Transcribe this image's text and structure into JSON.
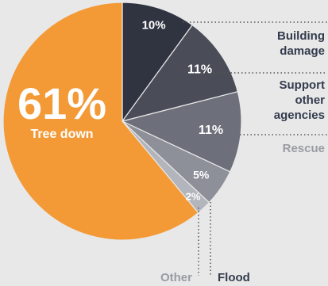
{
  "chart_data": {
    "type": "pie",
    "slices": [
      {
        "label": "Building damage",
        "value": 10,
        "pct_label": "10%",
        "color": "#2f3440"
      },
      {
        "label": "Support other agencies",
        "value": 11,
        "pct_label": "11%",
        "color": "#4a4d58"
      },
      {
        "label": "Rescue",
        "value": 11,
        "pct_label": "11%",
        "color": "#6d707a"
      },
      {
        "label": "Flood",
        "value": 5,
        "pct_label": "5%",
        "color": "#8e9099"
      },
      {
        "label": "Other",
        "value": 2,
        "pct_label": "2%",
        "color": "#b3b5bc"
      },
      {
        "label": "Tree down",
        "value": 61,
        "pct_label": "61%",
        "color": "#f39a37"
      }
    ],
    "legend_colors": {
      "dark": "#333b4d",
      "light": "#9a9ca3"
    }
  }
}
